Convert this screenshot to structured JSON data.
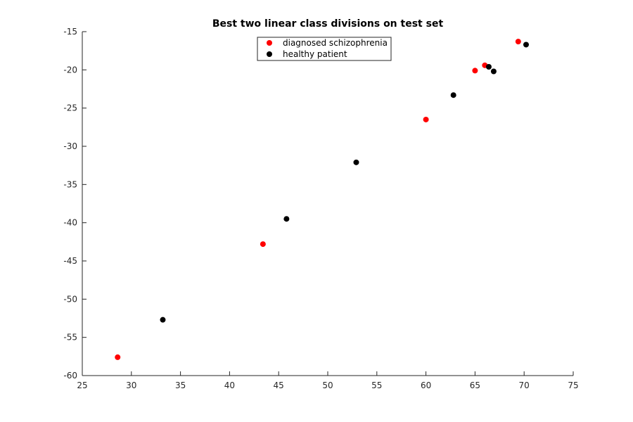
{
  "chart_data": {
    "type": "scatter",
    "title": "Best two linear class divisions on test set",
    "xlabel": "",
    "ylabel": "",
    "xlim": [
      25,
      75
    ],
    "ylim": [
      -60,
      -15
    ],
    "x_ticks": [
      25,
      30,
      35,
      40,
      45,
      50,
      55,
      60,
      65,
      70,
      75
    ],
    "y_ticks": [
      -15,
      -20,
      -25,
      -30,
      -35,
      -40,
      -45,
      -50,
      -55,
      -60
    ],
    "grid": false,
    "legend_position": "top-center",
    "series": [
      {
        "name": "diagnosed schizophrenia",
        "color": "#ff0000",
        "points": [
          {
            "x": 28.6,
            "y": -57.6
          },
          {
            "x": 43.4,
            "y": -42.8
          },
          {
            "x": 60.0,
            "y": -26.5
          },
          {
            "x": 65.0,
            "y": -20.1
          },
          {
            "x": 66.0,
            "y": -19.4
          },
          {
            "x": 69.4,
            "y": -16.3
          }
        ]
      },
      {
        "name": "healthy patient",
        "color": "#000000",
        "points": [
          {
            "x": 33.2,
            "y": -52.7
          },
          {
            "x": 45.8,
            "y": -39.5
          },
          {
            "x": 52.9,
            "y": -32.1
          },
          {
            "x": 62.8,
            "y": -23.3
          },
          {
            "x": 66.4,
            "y": -19.6
          },
          {
            "x": 66.9,
            "y": -20.2
          },
          {
            "x": 70.2,
            "y": -16.7
          }
        ]
      }
    ]
  }
}
